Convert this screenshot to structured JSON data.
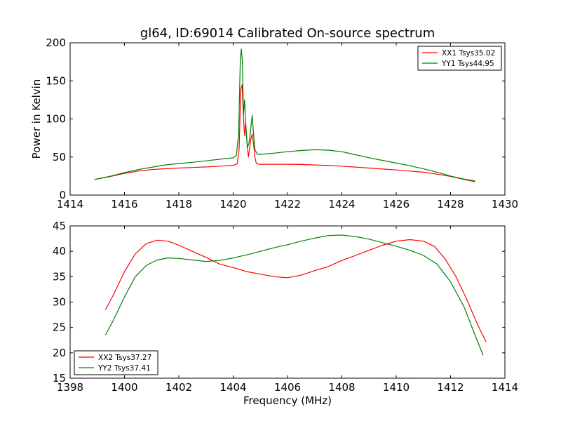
{
  "title": "gl64, ID:69014 Calibrated On-source spectrum",
  "chart_data": [
    {
      "type": "line",
      "title": "gl64, ID:69014 Calibrated On-source spectrum",
      "xlabel": "",
      "ylabel": "Power in Kelvin",
      "xlim": [
        1414,
        1430
      ],
      "ylim": [
        0,
        200
      ],
      "xticks": [
        1414,
        1416,
        1418,
        1420,
        1422,
        1424,
        1426,
        1428,
        1430
      ],
      "yticks": [
        0,
        50,
        100,
        150,
        200
      ],
      "legend_position": "top-right",
      "grid": false,
      "series": [
        {
          "name": "XX1 Tsys35.02",
          "color": "#ff0000",
          "points": [
            [
              1414.9,
              20.5
            ],
            [
              1415.5,
              24.5
            ],
            [
              1416,
              28.5
            ],
            [
              1416.5,
              31.5
            ],
            [
              1417,
              33.5
            ],
            [
              1417.5,
              34.7
            ],
            [
              1418,
              35.5
            ],
            [
              1418.5,
              36.2
            ],
            [
              1419,
              37
            ],
            [
              1419.5,
              38
            ],
            [
              1420,
              39
            ],
            [
              1420.15,
              41
            ],
            [
              1420.22,
              60
            ],
            [
              1420.28,
              138
            ],
            [
              1420.33,
              145
            ],
            [
              1420.38,
              100
            ],
            [
              1420.42,
              78
            ],
            [
              1420.46,
              95
            ],
            [
              1420.52,
              65
            ],
            [
              1420.56,
              50
            ],
            [
              1420.6,
              60
            ],
            [
              1420.66,
              75
            ],
            [
              1420.7,
              80
            ],
            [
              1420.74,
              70
            ],
            [
              1420.8,
              50
            ],
            [
              1420.85,
              42
            ],
            [
              1420.95,
              40.5
            ],
            [
              1421.5,
              40.5
            ],
            [
              1422,
              40.5
            ],
            [
              1422.5,
              40.2
            ],
            [
              1423,
              39.5
            ],
            [
              1423.5,
              38.8
            ],
            [
              1424,
              38
            ],
            [
              1424.5,
              36.8
            ],
            [
              1425,
              35.5
            ],
            [
              1425.5,
              34.2
            ],
            [
              1426,
              33
            ],
            [
              1426.5,
              31.5
            ],
            [
              1427,
              30
            ],
            [
              1427.5,
              27.5
            ],
            [
              1428,
              24.5
            ],
            [
              1428.5,
              20.5
            ],
            [
              1428.9,
              17.5
            ]
          ]
        },
        {
          "name": "YY1 Tsys44.95",
          "color": "#008000",
          "points": [
            [
              1414.9,
              20.5
            ],
            [
              1415.5,
              25
            ],
            [
              1416,
              29.5
            ],
            [
              1416.5,
              33.5
            ],
            [
              1417,
              36.5
            ],
            [
              1417.5,
              39.5
            ],
            [
              1418,
              41.5
            ],
            [
              1418.5,
              43
            ],
            [
              1419,
              45
            ],
            [
              1419.5,
              47
            ],
            [
              1420,
              49
            ],
            [
              1420.12,
              52
            ],
            [
              1420.2,
              80
            ],
            [
              1420.26,
              175
            ],
            [
              1420.3,
              192
            ],
            [
              1420.34,
              175
            ],
            [
              1420.38,
              105
            ],
            [
              1420.42,
              125
            ],
            [
              1420.46,
              95
            ],
            [
              1420.52,
              62
            ],
            [
              1420.58,
              68
            ],
            [
              1420.64,
              85
            ],
            [
              1420.7,
              105
            ],
            [
              1420.74,
              85
            ],
            [
              1420.8,
              60
            ],
            [
              1420.88,
              54
            ],
            [
              1421,
              53.5
            ],
            [
              1421.5,
              55
            ],
            [
              1422,
              57
            ],
            [
              1422.5,
              58.5
            ],
            [
              1423,
              59.5
            ],
            [
              1423.5,
              59
            ],
            [
              1424,
              57
            ],
            [
              1424.5,
              53
            ],
            [
              1425,
              49
            ],
            [
              1425.5,
              45.5
            ],
            [
              1426,
              42
            ],
            [
              1426.5,
              38.5
            ],
            [
              1427,
              34.5
            ],
            [
              1427.5,
              30
            ],
            [
              1428,
              25
            ],
            [
              1428.5,
              21
            ],
            [
              1428.9,
              18.5
            ]
          ]
        }
      ]
    },
    {
      "type": "line",
      "title": "",
      "xlabel": "Frequency (MHz)",
      "ylabel": "",
      "xlim": [
        1398,
        1414
      ],
      "ylim": [
        15,
        45
      ],
      "xticks": [
        1398,
        1400,
        1402,
        1404,
        1406,
        1408,
        1410,
        1412,
        1414
      ],
      "yticks": [
        15,
        20,
        25,
        30,
        35,
        40,
        45
      ],
      "legend_position": "bottom-left",
      "grid": false,
      "series": [
        {
          "name": "XX2 Tsys37.27",
          "color": "#ff0000",
          "points": [
            [
              1399.3,
              28.5
            ],
            [
              1399.6,
              31.5
            ],
            [
              1400,
              36
            ],
            [
              1400.4,
              39.5
            ],
            [
              1400.8,
              41.5
            ],
            [
              1401.2,
              42.2
            ],
            [
              1401.6,
              42
            ],
            [
              1402,
              41.2
            ],
            [
              1402.5,
              40
            ],
            [
              1403,
              38.8
            ],
            [
              1403.5,
              37.5
            ],
            [
              1404,
              36.8
            ],
            [
              1404.5,
              36
            ],
            [
              1405,
              35.5
            ],
            [
              1405.5,
              35
            ],
            [
              1406,
              34.8
            ],
            [
              1406.5,
              35.3
            ],
            [
              1407,
              36.2
            ],
            [
              1407.5,
              37
            ],
            [
              1408,
              38.2
            ],
            [
              1408.5,
              39.2
            ],
            [
              1409,
              40.2
            ],
            [
              1409.5,
              41.2
            ],
            [
              1410,
              42
            ],
            [
              1410.5,
              42.3
            ],
            [
              1411,
              42
            ],
            [
              1411.4,
              41
            ],
            [
              1411.8,
              38.5
            ],
            [
              1412.2,
              35
            ],
            [
              1412.6,
              30.5
            ],
            [
              1413,
              25.5
            ],
            [
              1413.3,
              22.2
            ]
          ]
        },
        {
          "name": "YY2 Tsys37.41",
          "color": "#008000",
          "points": [
            [
              1399.3,
              23.5
            ],
            [
              1399.6,
              26.5
            ],
            [
              1400,
              31
            ],
            [
              1400.4,
              35
            ],
            [
              1400.8,
              37.2
            ],
            [
              1401.2,
              38.3
            ],
            [
              1401.6,
              38.7
            ],
            [
              1402,
              38.6
            ],
            [
              1402.5,
              38.3
            ],
            [
              1403,
              38
            ],
            [
              1403.5,
              38.2
            ],
            [
              1404,
              38.7
            ],
            [
              1404.5,
              39.3
            ],
            [
              1405,
              40
            ],
            [
              1405.5,
              40.7
            ],
            [
              1406,
              41.3
            ],
            [
              1406.5,
              42
            ],
            [
              1407,
              42.6
            ],
            [
              1407.5,
              43.1
            ],
            [
              1408,
              43.2
            ],
            [
              1408.5,
              42.9
            ],
            [
              1409,
              42.4
            ],
            [
              1409.5,
              41.7
            ],
            [
              1410,
              41
            ],
            [
              1410.5,
              40.2
            ],
            [
              1411,
              39.2
            ],
            [
              1411.5,
              37.5
            ],
            [
              1412,
              34
            ],
            [
              1412.5,
              29
            ],
            [
              1412.9,
              23.5
            ],
            [
              1413.2,
              19.5
            ]
          ]
        }
      ]
    }
  ]
}
